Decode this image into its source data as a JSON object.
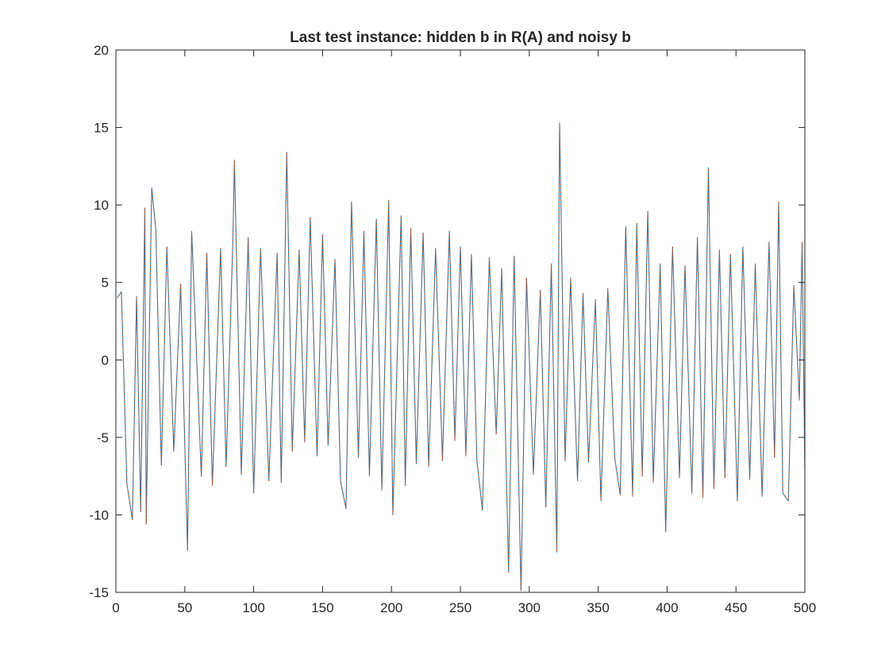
{
  "chart_data": {
    "type": "line",
    "title": "Last test instance: hidden b in R(A) and noisy b",
    "xlabel": "",
    "ylabel": "",
    "xlim": [
      0,
      500
    ],
    "ylim": [
      -15,
      20
    ],
    "xticks": [
      "0",
      "50",
      "100",
      "150",
      "200",
      "250",
      "300",
      "350",
      "400",
      "450",
      "500"
    ],
    "yticks": [
      "-15",
      "-10",
      "-5",
      "0",
      "5",
      "10",
      "15",
      "20"
    ],
    "grid": false,
    "legend": "none",
    "series": [
      {
        "color": "#0072bd",
        "style": "solid",
        "x": [
          1,
          4,
          8,
          12,
          15,
          18,
          21,
          22,
          26,
          29,
          33,
          37,
          42,
          47,
          52,
          55,
          62,
          66,
          70,
          76,
          80,
          85,
          86,
          91,
          96,
          100,
          105,
          111,
          117,
          120,
          124,
          128,
          133,
          137,
          141,
          146,
          150,
          154,
          159,
          163,
          167,
          171,
          176,
          180,
          184,
          189,
          193,
          198,
          201,
          207,
          210,
          214,
          218,
          223,
          227,
          232,
          237,
          242,
          246,
          250,
          254,
          258,
          262,
          266,
          271,
          276,
          280,
          285,
          289,
          294,
          298,
          303,
          308,
          312,
          316,
          320,
          322,
          326,
          330,
          335,
          339,
          343,
          348,
          352,
          357,
          362,
          366,
          370,
          375,
          378,
          382,
          386,
          390,
          395,
          399,
          404,
          409,
          413,
          418,
          422,
          426,
          430,
          434,
          438,
          442,
          446,
          451,
          455,
          460,
          464,
          469,
          474,
          478,
          481,
          484,
          488,
          492,
          496,
          498,
          501
        ],
        "y": [
          4,
          4.4,
          -8,
          -10.3,
          4.1,
          -9.8,
          9.8,
          -10.6,
          11.1,
          8.4,
          -6.8,
          7.3,
          -5.9,
          4.9,
          -12.3,
          8.3,
          -7.5,
          6.9,
          -8.1,
          7.2,
          -6.9,
          8.1,
          12.9,
          -7.4,
          7.9,
          -8.6,
          7.2,
          -7.8,
          6.9,
          -7.9,
          13.4,
          -5.9,
          7.1,
          -5.3,
          9.2,
          -6.2,
          8.1,
          -5.5,
          6.5,
          -7.8,
          -9.6,
          10.2,
          -6.3,
          8.3,
          -7.5,
          9.1,
          -8.4,
          10.3,
          -10,
          9.3,
          -8.1,
          8.5,
          -6.7,
          8.2,
          -6.9,
          7.2,
          -6.5,
          8.3,
          -5.2,
          7.3,
          -6.2,
          6.8,
          -6.5,
          -9.7,
          6.6,
          -4.8,
          5.9,
          -13.7,
          6.7,
          -14.9,
          5.3,
          -7.4,
          4.5,
          -9.5,
          6.2,
          -12.4,
          15.3,
          -6.5,
          5.3,
          -7.8,
          4.3,
          -6.6,
          3.9,
          -9.1,
          4.6,
          -6.3,
          -8.7,
          8.6,
          -8.8,
          8.8,
          -7.5,
          9.6,
          -7.9,
          6.2,
          -11.1,
          7.3,
          -7.6,
          6.1,
          -8.6,
          7.9,
          -8.9,
          12.4,
          -8.3,
          7.1,
          -7.6,
          6.8,
          -9.1,
          7.3,
          -7.7,
          6.2,
          -8.8,
          7.6,
          -6.3,
          10.2,
          -8.6,
          -9.1,
          4.8,
          -2.6,
          7.6,
          -7.3
        ]
      },
      {
        "color": "#d95319",
        "style": "dotted",
        "x": [
          1,
          4,
          8,
          12,
          15,
          18,
          21,
          22,
          26,
          29,
          33,
          37,
          42,
          47,
          52,
          55,
          62,
          66,
          70,
          76,
          80,
          85,
          86,
          91,
          96,
          100,
          105,
          111,
          117,
          120,
          124,
          128,
          133,
          137,
          141,
          146,
          150,
          154,
          159,
          163,
          167,
          171,
          176,
          180,
          184,
          189,
          193,
          198,
          201,
          207,
          210,
          214,
          218,
          223,
          227,
          232,
          237,
          242,
          246,
          250,
          254,
          258,
          262,
          266,
          271,
          276,
          280,
          285,
          289,
          294,
          298,
          303,
          308,
          312,
          316,
          320,
          322,
          326,
          330,
          335,
          339,
          343,
          348,
          352,
          357,
          362,
          366,
          370,
          375,
          378,
          382,
          386,
          390,
          395,
          399,
          404,
          409,
          413,
          418,
          422,
          426,
          430,
          434,
          438,
          442,
          446,
          451,
          455,
          460,
          464,
          469,
          474,
          478,
          481,
          484,
          488,
          492,
          496,
          498,
          501
        ],
        "y": [
          4,
          4.4,
          -8,
          -10.3,
          4.1,
          -9.8,
          9.8,
          -10.6,
          11.1,
          8.4,
          -6.8,
          7.3,
          -5.9,
          4.9,
          -12.3,
          8.3,
          -7.5,
          6.9,
          -8.1,
          7.2,
          -6.9,
          8.1,
          12.9,
          -7.4,
          7.9,
          -8.6,
          7.2,
          -7.8,
          6.9,
          -7.9,
          13.4,
          -5.9,
          7.1,
          -5.3,
          9.2,
          -6.2,
          8.1,
          -5.5,
          6.5,
          -7.8,
          -9.6,
          10.2,
          -6.3,
          8.3,
          -7.5,
          9.1,
          -8.4,
          10.3,
          -10,
          9.3,
          -8.1,
          8.5,
          -6.7,
          8.2,
          -6.9,
          7.2,
          -6.5,
          8.3,
          -5.2,
          7.3,
          -6.2,
          6.8,
          -6.5,
          -9.7,
          6.6,
          -4.8,
          5.9,
          -13.7,
          6.7,
          -14.9,
          5.3,
          -7.4,
          4.5,
          -9.5,
          6.2,
          -12.4,
          15.3,
          -6.5,
          5.3,
          -7.8,
          4.3,
          -6.6,
          3.9,
          -9.1,
          4.6,
          -6.3,
          -8.7,
          8.6,
          -8.8,
          8.8,
          -7.5,
          9.6,
          -7.9,
          6.2,
          -11.1,
          7.3,
          -7.6,
          6.1,
          -8.6,
          7.9,
          -8.9,
          12.4,
          -8.3,
          7.1,
          -7.6,
          6.8,
          -9.1,
          7.3,
          -7.7,
          6.2,
          -8.8,
          7.6,
          -6.3,
          10.2,
          -8.6,
          -9.1,
          4.8,
          -2.6,
          7.6,
          -7.3
        ]
      }
    ]
  }
}
